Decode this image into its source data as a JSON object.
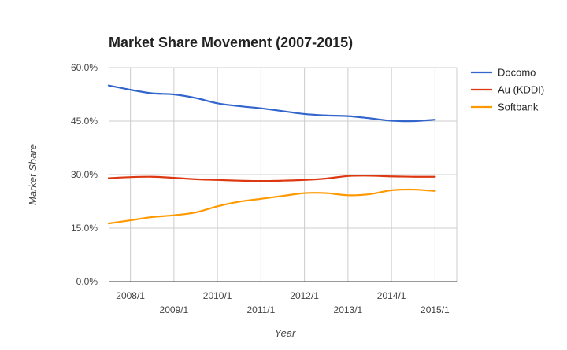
{
  "chart_data": {
    "type": "line",
    "title": "Market Share Movement (2007-2015)",
    "xlabel": "Year",
    "ylabel": "Market Share",
    "ylim": [
      0,
      60
    ],
    "xlim": [
      2007.5,
      2015.5
    ],
    "y_ticks": [
      {
        "value": 0,
        "label": "0.0%"
      },
      {
        "value": 15,
        "label": "15.0%"
      },
      {
        "value": 30,
        "label": "30.0%"
      },
      {
        "value": 45,
        "label": "45.0%"
      },
      {
        "value": 60,
        "label": "60.0%"
      }
    ],
    "x_ticks": [
      {
        "value": 2008,
        "label": "2008/1",
        "row": 1
      },
      {
        "value": 2009,
        "label": "2009/1",
        "row": 2
      },
      {
        "value": 2010,
        "label": "2010/1",
        "row": 1
      },
      {
        "value": 2011,
        "label": "2011/1",
        "row": 2
      },
      {
        "value": 2012,
        "label": "2012/1",
        "row": 1
      },
      {
        "value": 2013,
        "label": "2013/1",
        "row": 2
      },
      {
        "value": 2014,
        "label": "2014/1",
        "row": 1
      },
      {
        "value": 2015,
        "label": "2015/1",
        "row": 2
      }
    ],
    "grid": true,
    "legend_position": "right",
    "series": [
      {
        "name": "Docomo",
        "color": "#3366cc",
        "x": [
          2007.5,
          2008.0,
          2008.5,
          2009.0,
          2009.5,
          2010.0,
          2010.5,
          2011.0,
          2011.5,
          2012.0,
          2012.5,
          2013.0,
          2013.5,
          2014.0,
          2014.5,
          2015.0
        ],
        "values": [
          55.0,
          53.8,
          52.8,
          52.5,
          51.5,
          50.0,
          49.2,
          48.6,
          47.8,
          47.0,
          46.6,
          46.4,
          45.8,
          45.1,
          45.0,
          45.4
        ]
      },
      {
        "name": "Au (KDDI)",
        "color": "#dc3912",
        "x": [
          2007.5,
          2008.0,
          2008.5,
          2009.0,
          2009.5,
          2010.0,
          2010.5,
          2011.0,
          2011.5,
          2012.0,
          2012.5,
          2013.0,
          2013.5,
          2014.0,
          2014.5,
          2015.0
        ],
        "values": [
          29.0,
          29.3,
          29.4,
          29.1,
          28.7,
          28.5,
          28.3,
          28.2,
          28.3,
          28.5,
          28.9,
          29.6,
          29.7,
          29.5,
          29.4,
          29.4
        ]
      },
      {
        "name": "Softbank",
        "color": "#ff9900",
        "x": [
          2007.5,
          2008.0,
          2008.5,
          2009.0,
          2009.5,
          2010.0,
          2010.5,
          2011.0,
          2011.5,
          2012.0,
          2012.5,
          2013.0,
          2013.5,
          2014.0,
          2014.5,
          2015.0
        ],
        "values": [
          16.3,
          17.2,
          18.1,
          18.6,
          19.4,
          21.1,
          22.4,
          23.2,
          24.0,
          24.8,
          24.8,
          24.2,
          24.5,
          25.6,
          25.8,
          25.4
        ]
      }
    ]
  }
}
